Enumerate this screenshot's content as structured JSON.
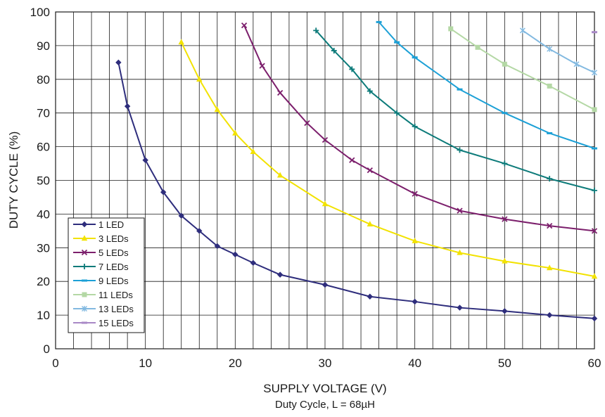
{
  "chart_data": {
    "type": "line",
    "title": "",
    "caption": "Duty Cycle, L = 68µH",
    "xlabel": "SUPPLY VOLTAGE (V)",
    "ylabel": "DUTY CYCLE (%)",
    "xlim": [
      0,
      60
    ],
    "ylim": [
      0,
      100
    ],
    "xticks": [
      "0",
      "10",
      "20",
      "30",
      "40",
      "50",
      "60"
    ],
    "yticks": [
      "0",
      "10",
      "20",
      "30",
      "40",
      "50",
      "60",
      "70",
      "80",
      "90",
      "100"
    ],
    "grid": true,
    "legend_position": "bottom-left",
    "series": [
      {
        "name": "1 LED",
        "color": "#2e2d7c",
        "marker": "diamond",
        "x": [
          7,
          8,
          10,
          12,
          14,
          16,
          18,
          20,
          22,
          25,
          30,
          35,
          40,
          45,
          50,
          55,
          60
        ],
        "y": [
          85,
          72,
          56,
          46.5,
          39.5,
          35,
          30.5,
          28,
          25.5,
          22,
          19,
          15.5,
          14,
          12.2,
          11.2,
          10,
          9
        ]
      },
      {
        "name": "3 LEDs",
        "color": "#f2e200",
        "marker": "triangle",
        "x": [
          14,
          16,
          18,
          20,
          22,
          25,
          30,
          35,
          40,
          45,
          50,
          55,
          60
        ],
        "y": [
          91,
          80,
          71,
          64,
          58.5,
          51.5,
          43,
          37,
          32,
          28.5,
          26,
          24,
          21.5
        ]
      },
      {
        "name": "5 LEDs",
        "color": "#7c1f6c",
        "marker": "x",
        "x": [
          21,
          23,
          25,
          28,
          30,
          33,
          35,
          40,
          45,
          50,
          55,
          60
        ],
        "y": [
          96,
          84,
          76,
          67,
          62,
          56,
          53,
          46,
          41,
          38.5,
          36.5,
          35
        ]
      },
      {
        "name": "7 LEDs",
        "color": "#0d7b7a",
        "marker": "plus",
        "x": [
          29,
          31,
          33,
          35,
          38,
          40,
          45,
          50,
          55,
          60
        ],
        "y": [
          94.5,
          88.5,
          83,
          76.5,
          70,
          66,
          59,
          55,
          50.5,
          47
        ]
      },
      {
        "name": "9 LEDs",
        "color": "#1ca0d6",
        "marker": "dash",
        "x": [
          36,
          38,
          40,
          45,
          50,
          55,
          60
        ],
        "y": [
          97,
          91,
          86.5,
          77,
          70,
          64,
          59.5
        ]
      },
      {
        "name": "11 LEDs",
        "color": "#b4d8a5",
        "marker": "square",
        "x": [
          44,
          47,
          50,
          55,
          60
        ],
        "y": [
          95,
          89.5,
          84.5,
          78,
          71
        ]
      },
      {
        "name": "13 LEDs",
        "color": "#82b9e0",
        "marker": "star",
        "x": [
          52,
          55,
          58,
          60
        ],
        "y": [
          94.5,
          89,
          84.5,
          82
        ]
      },
      {
        "name": "15 LEDs",
        "color": "#a888c6",
        "marker": "dash",
        "x": [
          60
        ],
        "y": [
          94
        ]
      }
    ]
  }
}
